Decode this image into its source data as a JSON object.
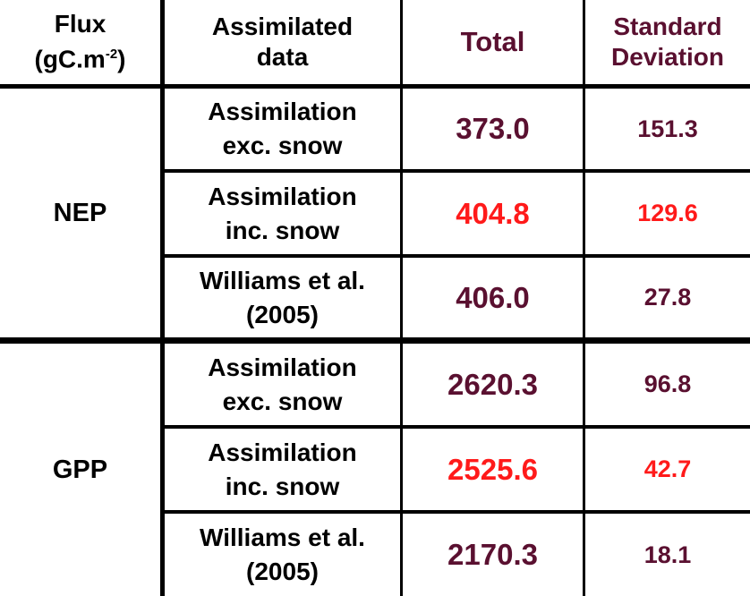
{
  "header": {
    "flux_line1": "Flux",
    "flux_line2_prefix": "(gC.m",
    "flux_sup": "-2",
    "flux_line2_suffix": ")",
    "data_line1": "Assimilated",
    "data_line2": "data",
    "total": "Total",
    "sd_line1": "Standard",
    "sd_line2": "Deviation"
  },
  "groups": [
    {
      "flux": "NEP",
      "rows": [
        {
          "data_line1": "Assimilation",
          "data_line2": "exc. snow",
          "total": "373.0",
          "sd": "151.3",
          "highlight": false
        },
        {
          "data_line1": "Assimilation",
          "data_line2": "inc. snow",
          "total": "404.8",
          "sd": "129.6",
          "highlight": true
        },
        {
          "data_line1": "Williams et al.",
          "data_line2": "(2005)",
          "total": "406.0",
          "sd": "27.8",
          "highlight": false
        }
      ]
    },
    {
      "flux": "GPP",
      "rows": [
        {
          "data_line1": "Assimilation",
          "data_line2": "exc. snow",
          "total": "2620.3",
          "sd": "96.8",
          "highlight": false
        },
        {
          "data_line1": "Assimilation",
          "data_line2": "inc. snow",
          "total": "2525.6",
          "sd": "42.7",
          "highlight": true
        },
        {
          "data_line1": "Williams et al.",
          "data_line2": "(2005)",
          "total": "2170.3",
          "sd": "18.1",
          "highlight": false
        }
      ]
    }
  ],
  "colors": {
    "text": "#000000",
    "accent": "#5a1030",
    "highlight": "#ff1a1a",
    "grid": "#000000",
    "background": "#ffffff"
  }
}
